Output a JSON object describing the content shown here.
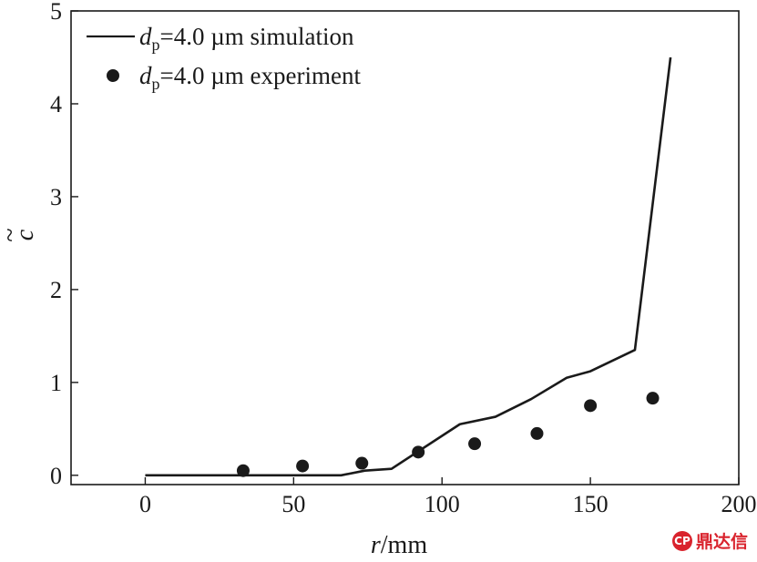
{
  "chart_data": {
    "type": "line",
    "xlabel_italic": "r",
    "xlabel_unit": "/mm",
    "ylabel": "c",
    "ylabel_accent": "~",
    "xlim": [
      -25,
      200
    ],
    "ylim": [
      -0.1,
      5
    ],
    "xticks": [
      "0",
      "50",
      "100",
      "150",
      "200"
    ],
    "yticks": [
      "0",
      "1",
      "2",
      "3",
      "4",
      "5"
    ],
    "legend_position": "top-left",
    "series": [
      {
        "name_prefix": "d",
        "name_subscript": "p",
        "name_suffix": "=4.0 µm simulation",
        "style": "line",
        "color": "#1a1a1a",
        "x": [
          0,
          66,
          74,
          83,
          106,
          118,
          130,
          142,
          150,
          165,
          177
        ],
        "y": [
          0,
          0,
          0.05,
          0.07,
          0.55,
          0.63,
          0.82,
          1.05,
          1.12,
          1.35,
          4.5
        ]
      },
      {
        "name_prefix": "d",
        "name_subscript": "p",
        "name_suffix": "=4.0 µm experiment",
        "style": "scatter",
        "color": "#1a1a1a",
        "x": [
          33,
          53,
          73,
          92,
          111,
          132,
          150,
          171
        ],
        "y": [
          0.05,
          0.1,
          0.13,
          0.25,
          0.34,
          0.45,
          0.75,
          0.83
        ]
      }
    ]
  },
  "watermark": {
    "icon": "CP",
    "text": "鼎达信"
  }
}
